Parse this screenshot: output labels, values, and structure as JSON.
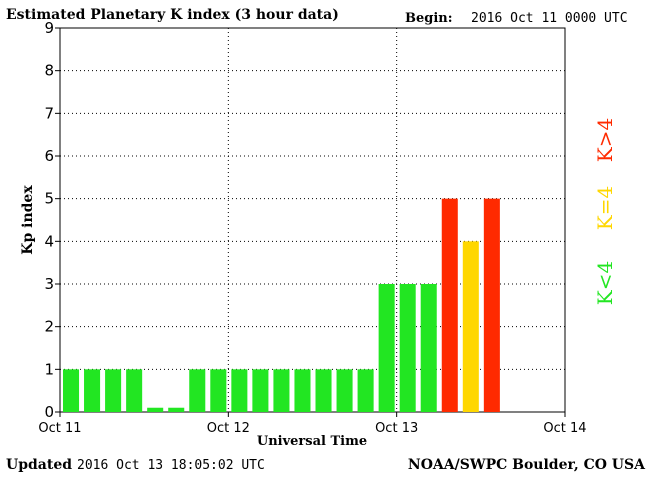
{
  "header": {
    "title": "Estimated Planetary K index (3 hour data)",
    "begin_label": "Begin:",
    "begin_value": "2016 Oct 11 0000 UTC"
  },
  "footer": {
    "updated_label": "Updated",
    "updated_value": "2016 Oct 13 18:05:02 UTC",
    "source": "NOAA/SWPC Boulder, CO USA"
  },
  "legend": [
    {
      "label": "K<4",
      "color": "#22e622"
    },
    {
      "label": "K=4",
      "color": "#ffd700"
    },
    {
      "label": "K>4",
      "color": "#ff2a00"
    }
  ],
  "chart_data": {
    "type": "bar",
    "title": "Estimated Planetary K index (3 hour data)",
    "xlabel": "Universal Time",
    "ylabel": "Kp index",
    "ylim": [
      0,
      9
    ],
    "yticks": [
      "0",
      "1",
      "2",
      "3",
      "4",
      "5",
      "6",
      "7",
      "8",
      "9"
    ],
    "xticks": [
      "Oct 11",
      "Oct 12",
      "Oct 13",
      "Oct 14"
    ],
    "xlim_hours": [
      0,
      72
    ],
    "bar_width_hours": 3,
    "grid": true,
    "values": [
      1,
      1,
      1,
      1,
      0.1,
      0.1,
      1,
      1,
      1,
      1,
      1,
      1,
      1,
      1,
      1,
      3,
      3,
      3,
      5,
      4,
      5
    ],
    "colors": {
      "below4": "#22e622",
      "equal4": "#ffd700",
      "above4": "#ff2a00"
    }
  }
}
